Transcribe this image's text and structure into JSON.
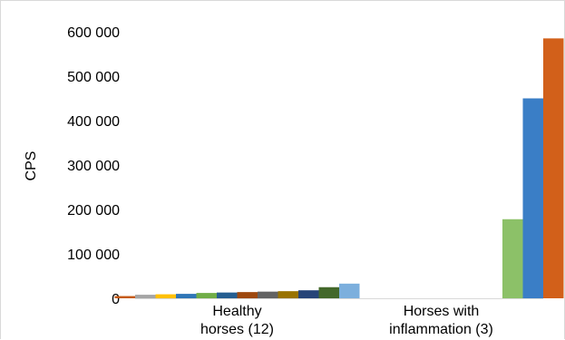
{
  "chart_data": {
    "type": "bar",
    "ylabel": "CPS",
    "ylim": [
      0,
      600000
    ],
    "yticks": [
      0,
      100000,
      200000,
      300000,
      400000,
      500000,
      600000
    ],
    "ytick_labels": [
      "0",
      "100 000",
      "200 000",
      "300 000",
      "400 000",
      "500 000",
      "600 000"
    ],
    "grid": false,
    "legend": "none",
    "groups": [
      {
        "label_lines": [
          "Healthy",
          "horses (12)"
        ],
        "bars": [
          {
            "value": 5000,
            "color": "#c55a11"
          },
          {
            "value": 8000,
            "color": "#a5a5a5"
          },
          {
            "value": 9000,
            "color": "#ffc000"
          },
          {
            "value": 10000,
            "color": "#2e75b6"
          },
          {
            "value": 12000,
            "color": "#70ad47"
          },
          {
            "value": 13000,
            "color": "#255e91"
          },
          {
            "value": 14000,
            "color": "#9e480e"
          },
          {
            "value": 15000,
            "color": "#636363"
          },
          {
            "value": 16000,
            "color": "#997300"
          },
          {
            "value": 18000,
            "color": "#264478"
          },
          {
            "value": 25000,
            "color": "#43682b"
          },
          {
            "value": 33000,
            "color": "#7cafdd"
          }
        ]
      },
      {
        "label_lines": [
          "Horses with",
          "inflammation (3)"
        ],
        "bars": [
          {
            "value": 178000,
            "color": "#8cc168"
          },
          {
            "value": 450000,
            "color": "#3a7ec6"
          },
          {
            "value": 585000,
            "color": "#d2601a"
          }
        ]
      }
    ]
  }
}
